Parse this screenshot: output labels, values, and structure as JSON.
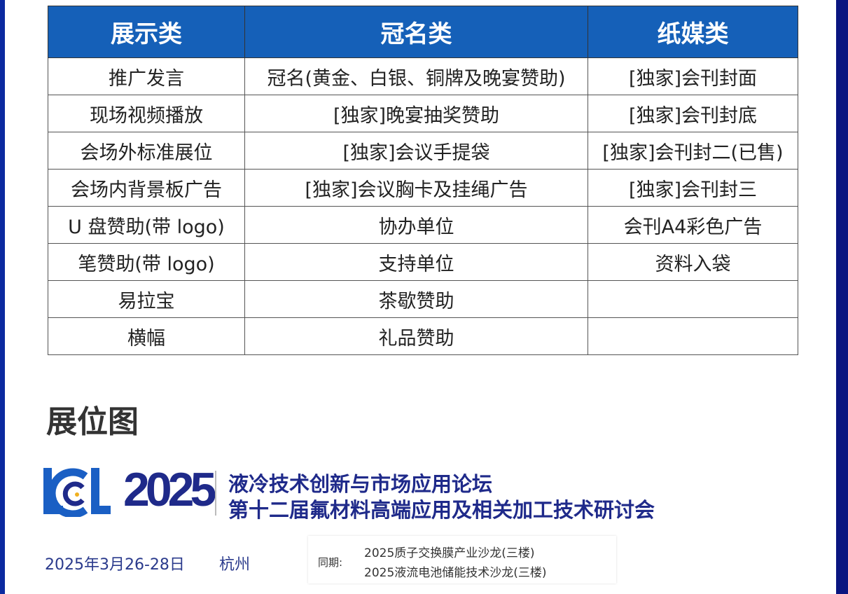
{
  "table": {
    "headers": [
      "展示类",
      "冠名类",
      "纸媒类"
    ],
    "rows": [
      [
        "推广发言",
        "冠名(黄金、白银、铜牌及晚宴赞助)",
        "[独家]会刊封面"
      ],
      [
        "现场视频播放",
        "[独家]晚宴抽奖赞助",
        "[独家]会刊封底"
      ],
      [
        "会场外标准展位",
        "[独家]会议手提袋",
        "[独家]会刊封二(已售)"
      ],
      [
        "会场内背景板广告",
        "[独家]会议胸卡及挂绳广告",
        "[独家]会刊封三"
      ],
      [
        "U 盘赞助(带 logo)",
        "协办单位",
        "会刊A4彩色广告"
      ],
      [
        "笔赞助(带 logo)",
        "支持单位",
        "资料入袋"
      ],
      [
        "易拉宝",
        "茶歇赞助",
        ""
      ],
      [
        "横幅",
        "礼品赞助",
        ""
      ]
    ]
  },
  "section_title": "展位图",
  "banner": {
    "logo_text": "LCEL",
    "year": "2025",
    "title_line1": "液冷技术创新与市场应用论坛",
    "title_line2": "第十二届氟材料高端应用及相关加工技术研讨会",
    "date": "2025年3月26-28日",
    "city": "杭州",
    "concurrent_label": "同期:",
    "concurrent_events": [
      "2025质子交换膜产业沙龙(三楼)",
      "2025液流电池储能技术沙龙(三楼)"
    ]
  },
  "colors": {
    "header_bg": "#1560b8",
    "brand_navy": "#1f2a8a",
    "logo_blue": "#1a5fc4",
    "side_bar": "#0a1580"
  }
}
